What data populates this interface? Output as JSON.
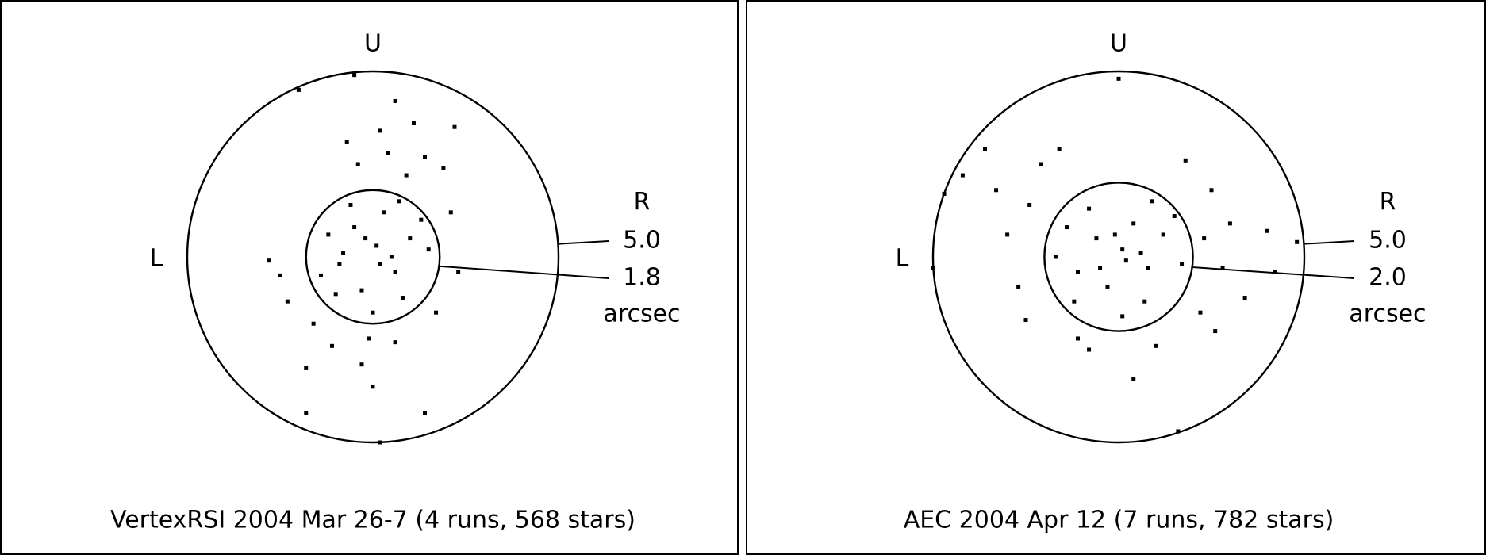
{
  "chart_data": [
    {
      "type": "scatter",
      "title": "VertexRSI 2004 Mar 26-7 (4 runs, 568 stars)",
      "top_label": "U",
      "left_label": "L",
      "right_label": "R",
      "unit_label": "arcsec",
      "xlim": [
        -5,
        5
      ],
      "ylim": [
        -5,
        5
      ],
      "color": "#000000",
      "rings": [
        {
          "value": 5,
          "label": "5.0"
        },
        {
          "value": 1.8,
          "label": "1.8"
        }
      ],
      "x": [
        0.1,
        -0.5,
        0.6,
        -0.9,
        0.3,
        1.0,
        -0.3,
        0.8,
        -1.2,
        0.2,
        -0.6,
        1.3,
        -1.0,
        0.5,
        -0.2,
        1.5,
        -1.4,
        0.0,
        0.7,
        -0.8,
        0.9,
        0.4,
        -0.4,
        1.4,
        0.2,
        -0.7,
        1.1,
        -1.6,
        -2.3,
        -1.1,
        -0.3,
        0.6,
        -1.8,
        0.0,
        1.7,
        2.1,
        2.3,
        -2.5,
        1.9,
        -0.1,
        -2.8,
        2.2,
        -1.8,
        1.4,
        0.2,
        -2.0,
        -0.5,
        0.6
      ],
      "y": [
        0.3,
        0.8,
        -0.4,
        -0.2,
        1.2,
        0.5,
        -0.9,
        -1.1,
        0.6,
        -0.2,
        1.4,
        1.0,
        -1.0,
        0.0,
        0.5,
        0.2,
        -0.5,
        -1.5,
        1.5,
        0.1,
        2.2,
        2.8,
        2.5,
        2.7,
        3.4,
        3.1,
        3.6,
        -1.8,
        -1.2,
        -2.4,
        -2.9,
        -2.3,
        -3.0,
        -3.5,
        -1.5,
        1.2,
        -0.4,
        -0.5,
        2.4,
        -2.2,
        -0.1,
        3.5,
        -4.2,
        -4.2,
        -5.0,
        4.5,
        4.9,
        4.2
      ]
    },
    {
      "type": "scatter",
      "title": "AEC 2004 Apr 12 (7 runs, 782 stars)",
      "top_label": "U",
      "left_label": "L",
      "right_label": "R",
      "unit_label": "arcsec",
      "xlim": [
        -5,
        5
      ],
      "ylim": [
        -5,
        5
      ],
      "color": "#000000",
      "rings": [
        {
          "value": 5,
          "label": "5.0"
        },
        {
          "value": 2,
          "label": "2.0"
        }
      ],
      "x": [
        0.1,
        -0.6,
        0.8,
        -1.1,
        0.4,
        1.2,
        -0.3,
        0.7,
        -1.4,
        0.2,
        -0.8,
        1.5,
        -1.2,
        0.6,
        -0.1,
        1.7,
        -1.7,
        0.1,
        0.9,
        -0.5,
        2.3,
        2.8,
        3.0,
        -2.4,
        -3.0,
        -2.7,
        -3.3,
        -2.1,
        -3.6,
        2.2,
        2.6,
        1.0,
        -0.8,
        -1.1,
        0.4,
        2.5,
        -2.5,
        3.4,
        1.8,
        -1.6,
        -4.7,
        -4.2,
        1.6,
        0.0,
        4.8,
        4.2,
        4.0,
        -5.0
      ],
      "y": [
        0.2,
        0.5,
        -0.3,
        -0.4,
        0.9,
        0.6,
        -0.8,
        -1.2,
        0.8,
        -0.1,
        1.3,
        1.1,
        -1.2,
        0.1,
        0.6,
        -0.2,
        0.0,
        -1.6,
        1.5,
        -0.3,
        0.5,
        -0.3,
        0.9,
        1.4,
        0.6,
        -0.8,
        1.8,
        2.5,
        2.9,
        -1.5,
        -2.0,
        -2.4,
        -2.5,
        -2.2,
        -3.3,
        1.8,
        -1.7,
        -1.1,
        2.6,
        2.9,
        1.7,
        2.2,
        -4.7,
        4.8,
        0.4,
        -0.4,
        0.7,
        -0.3
      ]
    }
  ]
}
